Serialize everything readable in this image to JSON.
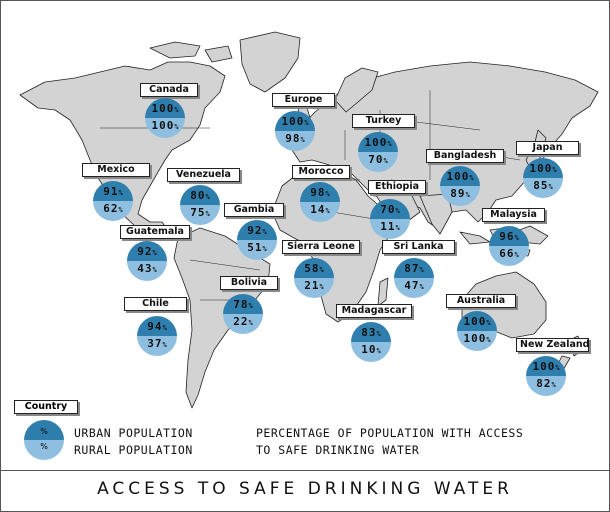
{
  "title": "ACCESS TO SAFE DRINKING WATER",
  "colors": {
    "urban": "#2f7fae",
    "rural": "#8fbfe0",
    "land": "#d3d3d3"
  },
  "legend": {
    "box_label": "Country",
    "urban_symbol": "%",
    "rural_symbol": "%",
    "urban_label": "URBAN POPULATION",
    "rural_label": "RURAL POPULATION",
    "desc_line1": "PERCENTAGE OF POPULATION WITH ACCESS",
    "desc_line2": "TO SAFE DRINKING WATER"
  },
  "unit": "%",
  "countries": [
    {
      "name": "Canada",
      "urban": "100",
      "rural": "100"
    },
    {
      "name": "Europe",
      "urban": "100",
      "rural": "98"
    },
    {
      "name": "Turkey",
      "urban": "100",
      "rural": "70"
    },
    {
      "name": "Bangladesh",
      "urban": "100",
      "rural": "89"
    },
    {
      "name": "Japan",
      "urban": "100",
      "rural": "85"
    },
    {
      "name": "Mexico",
      "urban": "91",
      "rural": "62"
    },
    {
      "name": "Venezuela",
      "urban": "80",
      "rural": "75"
    },
    {
      "name": "Morocco",
      "urban": "98",
      "rural": "14"
    },
    {
      "name": "Ethiopia",
      "urban": "70",
      "rural": "11"
    },
    {
      "name": "Gambia",
      "urban": "92",
      "rural": "51"
    },
    {
      "name": "Malaysia",
      "urban": "96",
      "rural": "66"
    },
    {
      "name": "Guatemala",
      "urban": "92",
      "rural": "43"
    },
    {
      "name": "Sierra Leone",
      "urban": "58",
      "rural": "21"
    },
    {
      "name": "Sri Lanka",
      "urban": "87",
      "rural": "47"
    },
    {
      "name": "Bolivia",
      "urban": "78",
      "rural": "22"
    },
    {
      "name": "Chile",
      "urban": "94",
      "rural": "37"
    },
    {
      "name": "Madagascar",
      "urban": "83",
      "rural": "10"
    },
    {
      "name": "Australia",
      "urban": "100",
      "rural": "100"
    },
    {
      "name": "New Zealand",
      "urban": "100",
      "rural": "82"
    }
  ]
}
